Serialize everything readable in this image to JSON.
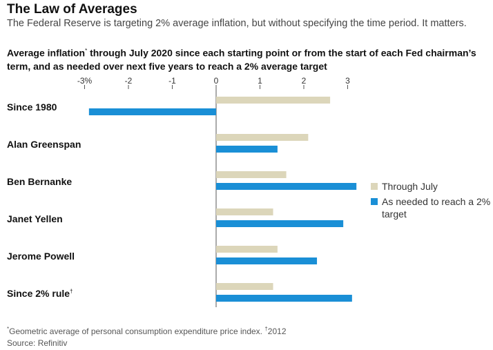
{
  "header": {
    "title": "The Law of Averages",
    "dek": "The Federal Reserve is targeting 2% average inflation, but without specifying the time period. It matters.",
    "subtitle_pre": "Average inflation",
    "subtitle_mark": "*",
    "subtitle_post": " through July 2020 since each starting point or from the start of each Fed chairman’s term, and as needed over next five years to reach a 2% average target"
  },
  "footer": {
    "footnote_mark": "*",
    "footnote_1": "Geometric average of personal consumption expenditure price index. ",
    "footnote_mark_2": "†",
    "footnote_2": "2012",
    "source": "Source: Refinitiv"
  },
  "colors": {
    "through_july": "#dcd6ba",
    "as_needed": "#1a8fd6",
    "axis": "#555555",
    "grid": "#cccccc"
  },
  "chart_data": {
    "type": "bar",
    "orientation": "horizontal",
    "categories": [
      "Since 1980",
      "Alan Greenspan",
      "Ben Bernanke",
      "Janet Yellen",
      "Jerome Powell",
      "Since 2% rule"
    ],
    "category_marks": [
      "",
      "",
      "",
      "",
      "",
      "†"
    ],
    "series": [
      {
        "name": "Through July",
        "values": [
          2.6,
          2.1,
          1.6,
          1.3,
          1.4,
          1.3
        ]
      },
      {
        "name": "As needed to reach a 2% target",
        "values": [
          -2.9,
          1.4,
          3.2,
          2.9,
          2.3,
          3.1
        ]
      }
    ],
    "xlim": [
      -3,
      3
    ],
    "ticks": [
      -3,
      -2,
      -1,
      0,
      1,
      2,
      3
    ],
    "tick_labels": [
      "-3%",
      "-2",
      "-1",
      "0",
      "1",
      "2",
      "3"
    ],
    "legend_position": "right",
    "grid": true
  }
}
